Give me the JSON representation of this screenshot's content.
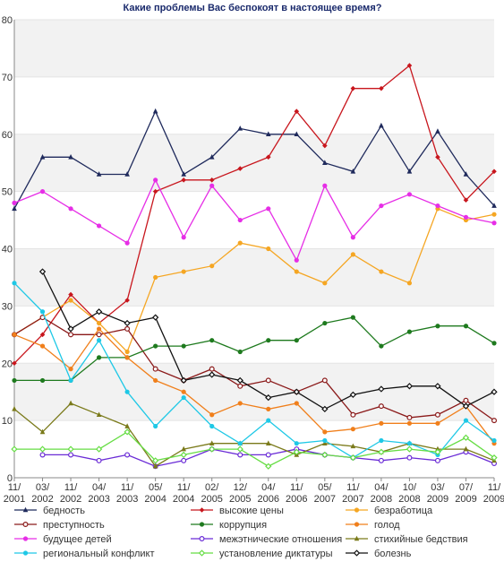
{
  "chart_data": {
    "type": "line",
    "title": "Какие проблемы Вас беспокоят в настоящее время?",
    "xlabel": "",
    "ylabel": "",
    "ylim": [
      0,
      80
    ],
    "yticks": [
      "0",
      "10",
      "20",
      "30",
      "40",
      "50",
      "60",
      "70",
      "80"
    ],
    "categories": [
      [
        "11/",
        "2001"
      ],
      [
        "03/",
        "2002"
      ],
      [
        "11/",
        "2002"
      ],
      [
        "04/",
        "2003"
      ],
      [
        "11/",
        "2003"
      ],
      [
        "05/",
        "2004"
      ],
      [
        "11/",
        "2004"
      ],
      [
        "02/",
        "2005"
      ],
      [
        "12/",
        "2005"
      ],
      [
        "04/",
        "2006"
      ],
      [
        "11/",
        "2006"
      ],
      [
        "05/",
        "2007"
      ],
      [
        "11/",
        "2007"
      ],
      [
        "04/",
        "2008"
      ],
      [
        "10/",
        "2008"
      ],
      [
        "03/",
        "2009"
      ],
      [
        "07/",
        "2009"
      ],
      [
        "11/",
        "2009"
      ]
    ],
    "grid": "alternating horizontal bands",
    "legend_position": "bottom",
    "series": [
      {
        "name": "бедность",
        "color": "#1f2a5c",
        "marker": "triangle",
        "values": [
          47,
          56,
          56,
          53,
          53,
          64,
          53,
          56,
          61,
          60,
          60,
          55,
          53.5,
          61.5,
          53.5,
          60.5,
          53,
          47.5
        ]
      },
      {
        "name": "высокие цены",
        "color": "#c8161d",
        "marker": "diamond",
        "values": [
          20,
          25,
          32,
          27,
          31,
          50,
          52,
          52,
          54,
          56,
          64,
          58,
          68,
          68,
          72,
          56,
          48.5,
          53.5
        ]
      },
      {
        "name": "безработица",
        "color": "#f5a623",
        "marker": "circle",
        "values": [
          25,
          28,
          31,
          27,
          22,
          35,
          36,
          37,
          41,
          40,
          36,
          34,
          39,
          36,
          34,
          47,
          45,
          46
        ]
      },
      {
        "name": "преступность",
        "color": "#8b1a1a",
        "marker": "circle-open",
        "values": [
          25,
          28,
          25,
          25,
          26,
          19,
          17,
          19,
          16,
          17,
          15,
          17,
          11,
          12.5,
          10.5,
          11,
          13.5,
          10
        ]
      },
      {
        "name": "коррупция",
        "color": "#1e7a1e",
        "marker": "circle",
        "values": [
          17,
          17,
          17,
          21,
          21,
          23,
          23,
          24,
          22,
          24,
          24,
          27,
          28,
          23,
          25.5,
          26.5,
          26.5,
          23.5
        ]
      },
      {
        "name": "голод",
        "color": "#f07f1b",
        "marker": "circle",
        "values": [
          25,
          23,
          19,
          26,
          21,
          17,
          15,
          11,
          13,
          12,
          13,
          8,
          8.5,
          9.5,
          9.5,
          9.5,
          12.5,
          6
        ]
      },
      {
        "name": "будущее детей",
        "color": "#e62ee6",
        "marker": "circle",
        "values": [
          48,
          50,
          47,
          44,
          41,
          52,
          42,
          51,
          45,
          47,
          38,
          51,
          42,
          47.5,
          49.5,
          47.5,
          45.5,
          44.5
        ]
      },
      {
        "name": "межэтнические отношения",
        "color": "#6a2bd6",
        "marker": "circle-open",
        "values": [
          null,
          4,
          4,
          3,
          4,
          2,
          3,
          5,
          4,
          4,
          5,
          4,
          3.5,
          3,
          3.5,
          3,
          4.5,
          2.5
        ]
      },
      {
        "name": "стихийные бедствия",
        "color": "#7a7a1a",
        "marker": "triangle",
        "values": [
          12,
          8,
          13,
          11,
          9,
          2,
          5,
          6,
          6,
          6,
          4,
          6,
          5.5,
          4.5,
          6,
          5,
          5,
          3
        ]
      },
      {
        "name": "региональный конфликт",
        "color": "#1ec8e6",
        "marker": "circle",
        "values": [
          34,
          29,
          17,
          24,
          15,
          9,
          14,
          9,
          6,
          10,
          6,
          6.5,
          3.5,
          6.5,
          6,
          4,
          10,
          6.5
        ]
      },
      {
        "name": "установление диктатуры",
        "color": "#66dd44",
        "marker": "diamond-open",
        "values": [
          5,
          5,
          5,
          5,
          8,
          3,
          4,
          5,
          5,
          2,
          4.5,
          4,
          3.5,
          4.5,
          5,
          4.5,
          7,
          3.5
        ]
      },
      {
        "name": "болезнь",
        "color": "#111111",
        "marker": "diamond-open",
        "values": [
          null,
          36,
          26,
          29,
          27,
          28,
          17,
          18,
          17,
          14,
          15,
          12,
          14.5,
          15.5,
          16,
          16,
          12.5,
          15
        ]
      }
    ]
  }
}
